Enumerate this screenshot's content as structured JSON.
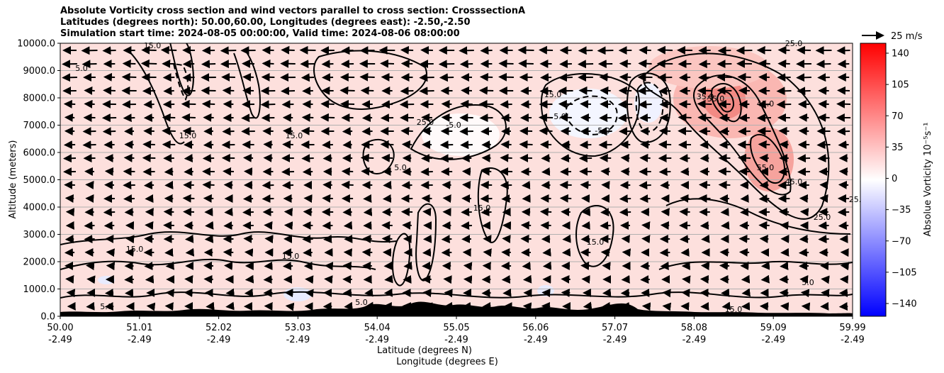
{
  "chart_data": {
    "type": "heatmap",
    "title_lines": [
      "Absolute Vorticity cross section and wind vectors parallel to cross section: CrosssectionA",
      "Latitudes (degrees north): 50.00,60.00, Longitudes (degrees east): -2.50,-2.50",
      "Simulation start time: 2024-08-05 00:00:00, Valid time: 2024-08-06 08:00:00"
    ],
    "ylabel": "Altitude (meters)",
    "xlabel_lines": [
      "Latitude (degrees N)",
      "Longitude (degrees E)"
    ],
    "y_ticks": [
      "0.0",
      "1000.0",
      "2000.0",
      "3000.0",
      "4000.0",
      "5000.0",
      "6000.0",
      "7000.0",
      "8000.0",
      "9000.0",
      "10000.0"
    ],
    "ylim": [
      0,
      10000
    ],
    "x_ticks": [
      {
        "lat": "50.00",
        "lon": "-2.49"
      },
      {
        "lat": "51.01",
        "lon": "-2.49"
      },
      {
        "lat": "52.02",
        "lon": "-2.49"
      },
      {
        "lat": "53.03",
        "lon": "-2.49"
      },
      {
        "lat": "54.04",
        "lon": "-2.49"
      },
      {
        "lat": "55.05",
        "lon": "-2.49"
      },
      {
        "lat": "56.06",
        "lon": "-2.49"
      },
      {
        "lat": "57.07",
        "lon": "-2.49"
      },
      {
        "lat": "58.08",
        "lon": "-2.49"
      },
      {
        "lat": "59.09",
        "lon": "-2.49"
      },
      {
        "lat": "59.99",
        "lon": "-2.49"
      }
    ],
    "xlim": [
      50.0,
      59.99
    ],
    "grid": "horizontal",
    "colorbar": {
      "label": "Absolue Vorticity 10⁻⁵s⁻¹",
      "ticks": [
        "140",
        "105",
        "70",
        "35",
        "0",
        "−35",
        "−70",
        "−105",
        "−140"
      ],
      "range": [
        -150,
        150
      ],
      "cmap": "bwr",
      "color_low": "#0000ff",
      "color_mid": "#ffffff",
      "color_high": "#ff0000"
    },
    "quiver_key": "25 m/s",
    "contour_labels": [
      "-5.0",
      "5.0",
      "15.0",
      "25.0",
      "35.0",
      "45.0",
      "55.0"
    ],
    "vorticity_peaks": [
      {
        "lat": 58.4,
        "alt": 7700,
        "value": 55
      },
      {
        "lat": 59.0,
        "alt": 5300,
        "value": 45
      },
      {
        "lat": 56.7,
        "alt": 7300,
        "value": -5
      },
      {
        "lat": 57.5,
        "alt": 7500,
        "value": -5
      },
      {
        "lat": 55.3,
        "alt": 6500,
        "value": 5
      }
    ]
  }
}
